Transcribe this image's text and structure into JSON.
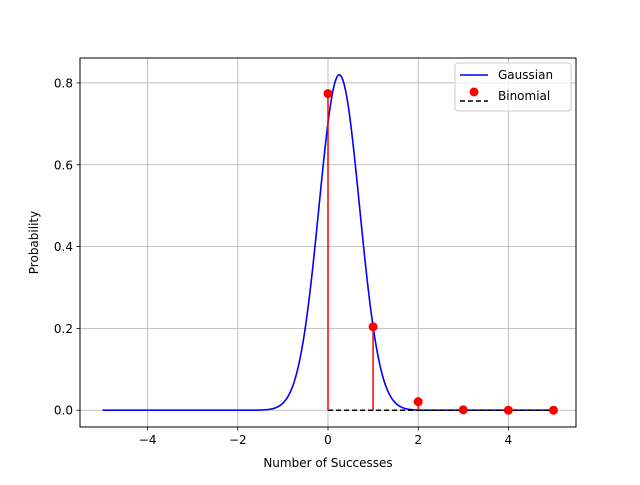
{
  "chart_data": {
    "type": "line",
    "title": "",
    "xlabel": "Number of Successes",
    "ylabel": "Probability",
    "xlim": [
      -5.5,
      5.5
    ],
    "ylim": [
      -0.041,
      0.861
    ],
    "xticks": [
      -4,
      -2,
      0,
      2,
      4
    ],
    "xtick_labels": [
      "−4",
      "−2",
      "0",
      "2",
      "4"
    ],
    "yticks": [
      0.0,
      0.2,
      0.4,
      0.6,
      0.8
    ],
    "ytick_labels": [
      "0.0",
      "0.2",
      "0.4",
      "0.6",
      "0.8"
    ],
    "grid": true,
    "legend_position": "top-right",
    "series": [
      {
        "name": "Gaussian",
        "kind": "line",
        "color": "#0000ff",
        "x_range": [
          -5,
          5
        ],
        "mean": 0.25,
        "peak": 0.82,
        "sigma": 0.45
      },
      {
        "name": "Binomial",
        "kind": "stem",
        "marker_color": "#ff0000",
        "stem_color": "#ff0000",
        "baseline_color": "#000000",
        "baseline_style": "dashed",
        "x": [
          0,
          1,
          2,
          3,
          4,
          5
        ],
        "y": [
          0.774,
          0.204,
          0.021,
          0.001,
          0.0,
          0.0
        ]
      }
    ]
  }
}
